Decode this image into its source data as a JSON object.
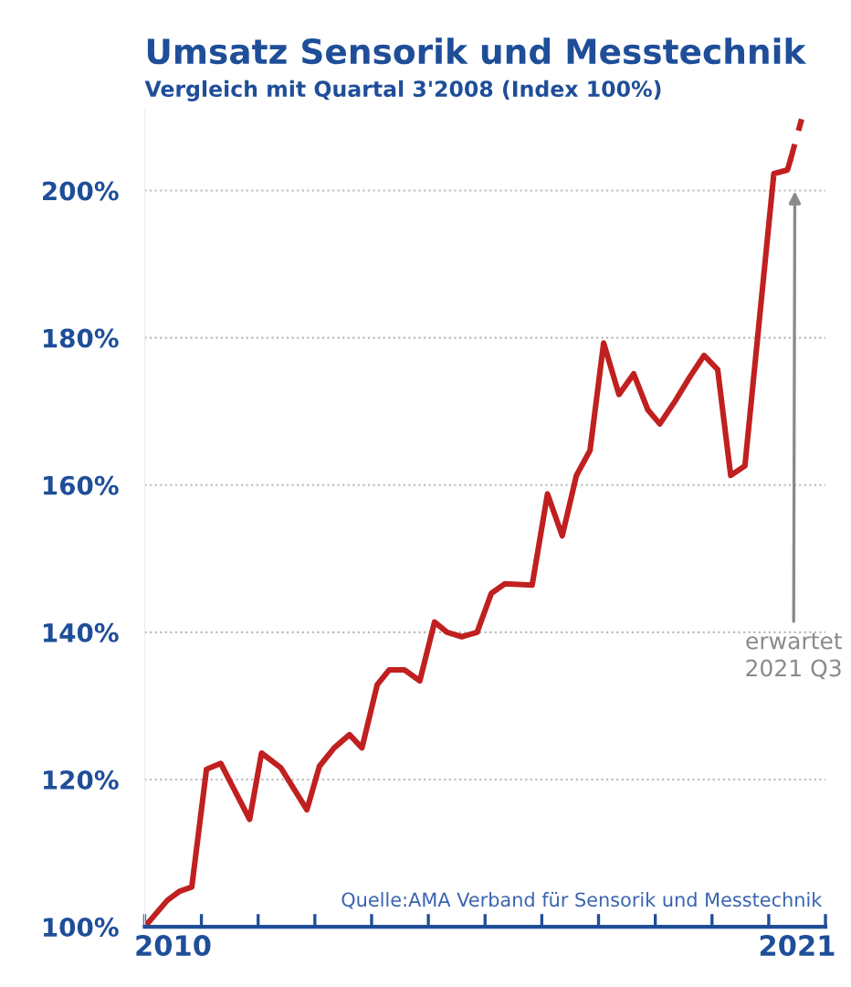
{
  "chart_data": {
    "type": "line",
    "title": "Umsatz Sensorik und Messtechnik",
    "subtitle": "Vergleich mit Quartal 3'2008 (Index 100%)",
    "series": [
      {
        "color": "#c0201f",
        "line_style": "solid",
        "x": [
          2010.0,
          2010.4,
          2010.61,
          2010.83,
          2011.09,
          2011.34,
          2011.85,
          2012.06,
          2012.4,
          2012.86,
          2013.08,
          2013.34,
          2013.61,
          2013.83,
          2014.1,
          2014.31,
          2014.58,
          2014.85,
          2015.11,
          2015.33,
          2015.59,
          2015.86,
          2016.11,
          2016.35,
          2016.83,
          2017.1,
          2017.36,
          2017.61,
          2017.85,
          2018.09,
          2018.36,
          2018.62,
          2018.87,
          2019.08,
          2019.35,
          2019.61,
          2019.86,
          2020.1,
          2020.33,
          2020.58,
          2021.09,
          2021.33,
          2021.38
        ],
        "values": [
          100,
          103.6,
          104.8,
          105.4,
          121.4,
          122.2,
          114.6,
          123.6,
          121.6,
          115.9,
          121.8,
          124.3,
          126.1,
          124.3,
          132.9,
          134.9,
          134.9,
          133.4,
          141.4,
          140,
          139.4,
          140,
          145.3,
          146.6,
          146.4,
          158.8,
          153.1,
          161.3,
          164.7,
          179.3,
          172.3,
          175.1,
          170.2,
          168.3,
          171.4,
          174.7,
          177.6,
          175.7,
          161.3,
          162.6,
          202.3,
          202.8,
          204.1
        ]
      },
      {
        "color": "#c0201f",
        "line_style": "dashed",
        "x": [
          2021.38,
          2021.58
        ],
        "values": [
          204.1,
          209.7
        ]
      }
    ],
    "xlim": [
      2010,
      2022
    ],
    "xticks": [
      {
        "value": 2010,
        "label": null
      },
      {
        "value": 2010.5,
        "label": "2010"
      },
      {
        "value": 2011,
        "label": null
      },
      {
        "value": 2012,
        "label": null
      },
      {
        "value": 2013,
        "label": null
      },
      {
        "value": 2014,
        "label": null
      },
      {
        "value": 2015,
        "label": null
      },
      {
        "value": 2016,
        "label": null
      },
      {
        "value": 2017,
        "label": null
      },
      {
        "value": 2018,
        "label": null
      },
      {
        "value": 2019,
        "label": null
      },
      {
        "value": 2020,
        "label": null
      },
      {
        "value": 2021,
        "label": null
      },
      {
        "value": 2021.5,
        "label": "2021"
      },
      {
        "value": 2022,
        "label": null
      }
    ],
    "ylim": [
      100,
      211
    ],
    "yticks": [
      {
        "value": 100,
        "label": "100%"
      },
      {
        "value": 120,
        "label": "120%"
      },
      {
        "value": 140,
        "label": "140%"
      },
      {
        "value": 160,
        "label": "160%"
      },
      {
        "value": 180,
        "label": "180%"
      },
      {
        "value": 200,
        "label": "200%"
      }
    ],
    "grid": "y",
    "legend": false,
    "marker": "none",
    "annotations": [
      "erwartet\n2021 Q3",
      "Quelle:AMA Verband für Sensorik und Messtechnik"
    ]
  }
}
